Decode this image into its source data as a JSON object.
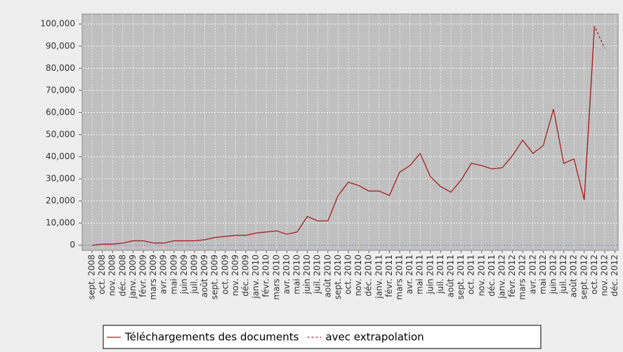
{
  "chart_data": {
    "type": "line",
    "categories": [
      "sept. 2008",
      "oct. 2008",
      "nov. 2008",
      "déc. 2008",
      "janv. 2009",
      "févr. 2009",
      "mars 2009",
      "avr. 2009",
      "mai 2009",
      "juin 2009",
      "juil. 2009",
      "août 2009",
      "sept. 2009",
      "oct. 2009",
      "nov. 2009",
      "déc. 2009",
      "janv. 2010",
      "févr. 2010",
      "mars 2010",
      "avr. 2010",
      "mai 2010",
      "juin 2010",
      "juil. 2010",
      "août 2010",
      "sept. 2010",
      "oct. 2010",
      "nov. 2010",
      "déc. 2010",
      "janv. 2011",
      "févr. 2011",
      "mars 2011",
      "avr. 2011",
      "mai 2011",
      "juin 2011",
      "juil. 2011",
      "août 2011",
      "sept. 2011",
      "oct. 2011",
      "nov. 2011",
      "déc. 2011",
      "janv. 2012",
      "févr. 2012",
      "mars 2012",
      "avr. 2012",
      "mai 2012",
      "juin 2012",
      "juil. 2012",
      "août 2012",
      "sept. 2012",
      "oct. 2012",
      "nov. 2012",
      "déc. 2012"
    ],
    "series": [
      {
        "name": "Téléchargements des documents",
        "color": "#a52020",
        "dash": false,
        "values": [
          0,
          500,
          500,
          1000,
          2000,
          2000,
          1000,
          1000,
          2000,
          2000,
          2000,
          2500,
          3500,
          4000,
          4500,
          4500,
          5500,
          6000,
          6500,
          5000,
          6000,
          13000,
          11000,
          11000,
          22500,
          28500,
          27000,
          24500,
          24500,
          22500,
          33000,
          36000,
          41500,
          31000,
          26500,
          24000,
          29500,
          37000,
          36000,
          34500,
          35000,
          40500,
          47500,
          41500,
          45000,
          61500,
          37000,
          39000,
          20500,
          99000,
          null,
          null
        ]
      },
      {
        "name": "avec extrapolation",
        "color": "#a52020",
        "dash": true,
        "values": [
          null,
          null,
          null,
          null,
          null,
          null,
          null,
          null,
          null,
          null,
          null,
          null,
          null,
          null,
          null,
          null,
          null,
          null,
          null,
          null,
          null,
          null,
          null,
          null,
          null,
          null,
          null,
          null,
          null,
          null,
          null,
          null,
          null,
          null,
          null,
          null,
          null,
          null,
          null,
          null,
          null,
          null,
          null,
          null,
          null,
          null,
          null,
          null,
          20500,
          99000,
          89000,
          null
        ]
      }
    ],
    "ylim": [
      -2300,
      104500
    ],
    "yticks": [
      0,
      {
        "value": 10000,
        "label": "10,000"
      },
      {
        "value": 20000,
        "label": "20,000"
      },
      {
        "value": 30000,
        "label": "30,000"
      },
      {
        "value": 40000,
        "label": "40,000"
      },
      {
        "value": 50000,
        "label": "50,000"
      },
      {
        "value": 60000,
        "label": "60,000"
      },
      {
        "value": 70000,
        "label": "70,000"
      },
      {
        "value": 80000,
        "label": "80,000"
      },
      {
        "value": 90000,
        "label": "90,000"
      },
      {
        "value": 100000,
        "label": "100,000"
      }
    ],
    "grid": true
  }
}
